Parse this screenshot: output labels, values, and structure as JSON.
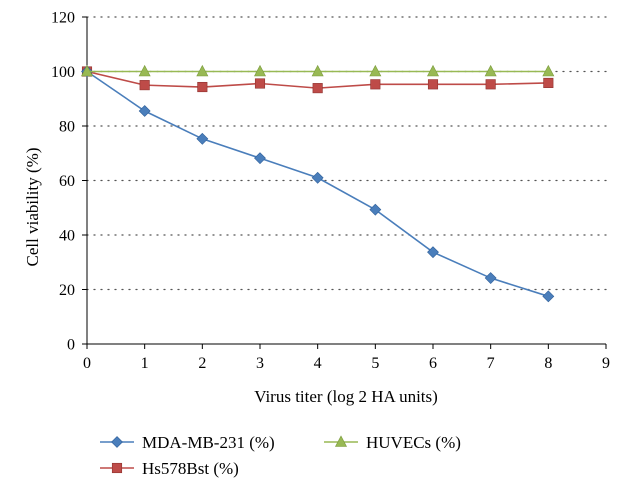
{
  "chart_data": {
    "type": "line",
    "title": "",
    "xlabel": "Virus titer (log 2 HA units)",
    "ylabel": "Cell viability (%)",
    "xlim": [
      0,
      9
    ],
    "ylim": [
      0,
      120
    ],
    "xticks": [
      0,
      1,
      2,
      3,
      4,
      5,
      6,
      7,
      8,
      9
    ],
    "yticks": [
      0,
      20,
      40,
      60,
      80,
      100,
      120
    ],
    "grid": "horizontal dotted",
    "legend_position": "bottom",
    "x": [
      0,
      1,
      2,
      3,
      4,
      5,
      6,
      7,
      8
    ],
    "series": [
      {
        "name": "MDA-MB-231 (%)",
        "color": "#4a7ebb",
        "marker": "diamond",
        "values": [
          100,
          85.5,
          75.3,
          68.2,
          61,
          49.3,
          33.7,
          24.2,
          17.5
        ]
      },
      {
        "name": "Hs578Bst (%)",
        "color": "#be4b48",
        "marker": "square",
        "values": [
          100,
          95,
          94.3,
          95.6,
          93.9,
          95.3,
          95.3,
          95.3,
          95.8
        ]
      },
      {
        "name": "HUVECs (%)",
        "color": "#98b954",
        "marker": "triangle",
        "values": [
          100,
          100,
          100,
          100,
          100,
          100,
          100,
          100,
          100
        ]
      }
    ]
  }
}
